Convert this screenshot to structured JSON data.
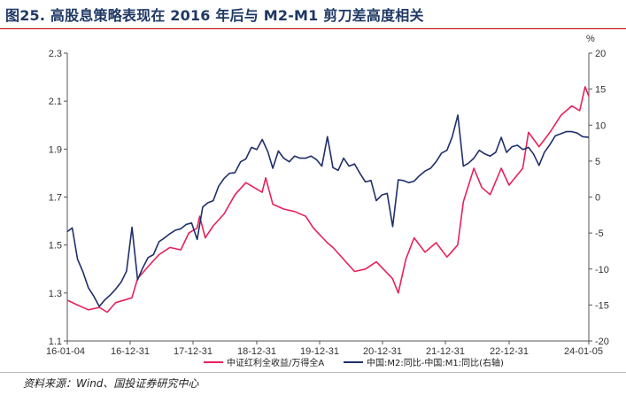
{
  "title": "图25. 高股息策略表现在 2016 年后与 M2-M1 剪刀差高度相关",
  "source": "资料来源：Wind、国投证券研究中心",
  "chart_data": {
    "type": "line",
    "x_tick_labels": [
      "16-01-04",
      "16-12-31",
      "17-12-31",
      "18-12-31",
      "19-12-31",
      "20-12-31",
      "21-12-31",
      "22-12-31",
      "24-01-05"
    ],
    "x_range": [
      "2016-01-04",
      "2024-01-05"
    ],
    "y_left": {
      "ticks": [
        "1.1",
        "1.3",
        "1.5",
        "1.7",
        "1.9",
        "2.1",
        "2.3"
      ],
      "range": [
        1.1,
        2.3
      ]
    },
    "y_right": {
      "unit": "%",
      "ticks": [
        "-20",
        "-15",
        "-10",
        "-5",
        "0",
        "5",
        "10",
        "15",
        "20"
      ],
      "range": [
        -20,
        20
      ]
    },
    "grid": false,
    "legend_position": "bottom",
    "series": [
      {
        "name": "中证红利全收益/万得全A",
        "axis": "left",
        "color": "#e8215a",
        "points": [
          [
            "2016-01-04",
            1.27
          ],
          [
            "2016-03-01",
            1.25
          ],
          [
            "2016-05-01",
            1.23
          ],
          [
            "2016-07-01",
            1.24
          ],
          [
            "2016-08-15",
            1.22
          ],
          [
            "2016-10-01",
            1.26
          ],
          [
            "2016-12-31",
            1.28
          ],
          [
            "2017-02-01",
            1.36
          ],
          [
            "2017-04-01",
            1.41
          ],
          [
            "2017-06-01",
            1.46
          ],
          [
            "2017-08-01",
            1.49
          ],
          [
            "2017-10-01",
            1.48
          ],
          [
            "2017-11-15",
            1.55
          ],
          [
            "2017-12-31",
            1.57
          ],
          [
            "2018-01-15",
            1.62
          ],
          [
            "2018-02-15",
            1.53
          ],
          [
            "2018-04-01",
            1.58
          ],
          [
            "2018-06-01",
            1.63
          ],
          [
            "2018-08-01",
            1.71
          ],
          [
            "2018-10-01",
            1.76
          ],
          [
            "2018-12-31",
            1.72
          ],
          [
            "2019-01-20",
            1.78
          ],
          [
            "2019-03-01",
            1.67
          ],
          [
            "2019-05-01",
            1.65
          ],
          [
            "2019-07-01",
            1.64
          ],
          [
            "2019-09-01",
            1.62
          ],
          [
            "2019-10-15",
            1.57
          ],
          [
            "2019-12-31",
            1.51
          ],
          [
            "2020-02-01",
            1.49
          ],
          [
            "2020-04-01",
            1.44
          ],
          [
            "2020-06-01",
            1.39
          ],
          [
            "2020-08-01",
            1.4
          ],
          [
            "2020-10-01",
            1.43
          ],
          [
            "2020-12-31",
            1.36
          ],
          [
            "2021-02-01",
            1.3
          ],
          [
            "2021-03-15",
            1.44
          ],
          [
            "2021-05-01",
            1.53
          ],
          [
            "2021-07-01",
            1.47
          ],
          [
            "2021-09-01",
            1.51
          ],
          [
            "2021-11-01",
            1.45
          ],
          [
            "2021-12-31",
            1.5
          ],
          [
            "2022-02-01",
            1.68
          ],
          [
            "2022-04-01",
            1.82
          ],
          [
            "2022-05-15",
            1.74
          ],
          [
            "2022-07-01",
            1.71
          ],
          [
            "2022-09-01",
            1.82
          ],
          [
            "2022-10-15",
            1.75
          ],
          [
            "2022-12-31",
            1.82
          ],
          [
            "2023-02-01",
            1.97
          ],
          [
            "2023-04-01",
            1.91
          ],
          [
            "2023-06-01",
            1.97
          ],
          [
            "2023-08-01",
            2.04
          ],
          [
            "2023-10-01",
            2.08
          ],
          [
            "2023-11-15",
            2.06
          ],
          [
            "2023-12-15",
            2.16
          ],
          [
            "2024-01-05",
            2.12
          ]
        ]
      },
      {
        "name": "中国:M2:同比-中国:M1:同比(右轴)",
        "axis": "right",
        "color": "#1f2f6b",
        "points": [
          [
            "2016-01-04",
            -4.8
          ],
          [
            "2016-02-01",
            -4.3
          ],
          [
            "2016-03-01",
            -8.6
          ],
          [
            "2016-04-01",
            -10.4
          ],
          [
            "2016-05-01",
            -12.6
          ],
          [
            "2016-06-01",
            -13.8
          ],
          [
            "2016-07-01",
            -15.2
          ],
          [
            "2016-08-01",
            -14.3
          ],
          [
            "2016-09-01",
            -13.6
          ],
          [
            "2016-10-01",
            -12.8
          ],
          [
            "2016-11-01",
            -11.8
          ],
          [
            "2016-12-01",
            -10.3
          ],
          [
            "2017-01-01",
            -4.2
          ],
          [
            "2017-02-01",
            -11.5
          ],
          [
            "2017-03-01",
            -9.9
          ],
          [
            "2017-04-01",
            -8.4
          ],
          [
            "2017-05-01",
            -8.0
          ],
          [
            "2017-06-01",
            -6.2
          ],
          [
            "2017-07-01",
            -5.7
          ],
          [
            "2017-08-01",
            -5.1
          ],
          [
            "2017-09-01",
            -4.6
          ],
          [
            "2017-10-01",
            -4.4
          ],
          [
            "2017-11-01",
            -3.8
          ],
          [
            "2017-12-01",
            -3.6
          ],
          [
            "2018-01-01",
            -5.9
          ],
          [
            "2018-02-01",
            -1.4
          ],
          [
            "2018-03-01",
            -0.8
          ],
          [
            "2018-04-01",
            -0.5
          ],
          [
            "2018-05-01",
            1.5
          ],
          [
            "2018-06-01",
            2.6
          ],
          [
            "2018-07-01",
            3.3
          ],
          [
            "2018-08-01",
            3.4
          ],
          [
            "2018-09-01",
            4.9
          ],
          [
            "2018-10-01",
            5.3
          ],
          [
            "2018-11-01",
            6.9
          ],
          [
            "2018-12-01",
            6.6
          ],
          [
            "2019-01-01",
            8.0
          ],
          [
            "2019-02-01",
            6.3
          ],
          [
            "2019-03-01",
            4.0
          ],
          [
            "2019-04-01",
            6.4
          ],
          [
            "2019-05-01",
            5.4
          ],
          [
            "2019-06-01",
            4.9
          ],
          [
            "2019-07-01",
            5.7
          ],
          [
            "2019-08-01",
            5.4
          ],
          [
            "2019-09-01",
            5.4
          ],
          [
            "2019-10-01",
            5.7
          ],
          [
            "2019-11-01",
            5.2
          ],
          [
            "2019-12-01",
            4.3
          ],
          [
            "2020-01-01",
            8.4
          ],
          [
            "2020-02-01",
            4.1
          ],
          [
            "2020-03-01",
            3.7
          ],
          [
            "2020-04-01",
            5.4
          ],
          [
            "2020-05-01",
            4.3
          ],
          [
            "2020-06-01",
            4.6
          ],
          [
            "2020-07-01",
            3.3
          ],
          [
            "2020-08-01",
            2.1
          ],
          [
            "2020-09-01",
            2.3
          ],
          [
            "2020-10-01",
            -0.5
          ],
          [
            "2020-11-01",
            0.3
          ],
          [
            "2020-12-01",
            0.5
          ],
          [
            "2021-01-01",
            -4.1
          ],
          [
            "2021-02-01",
            2.4
          ],
          [
            "2021-03-01",
            2.3
          ],
          [
            "2021-04-01",
            2.0
          ],
          [
            "2021-05-01",
            2.2
          ],
          [
            "2021-06-01",
            3.0
          ],
          [
            "2021-07-01",
            3.6
          ],
          [
            "2021-08-01",
            4.0
          ],
          [
            "2021-09-01",
            4.9
          ],
          [
            "2021-10-01",
            6.1
          ],
          [
            "2021-11-01",
            6.5
          ],
          [
            "2021-12-01",
            8.4
          ],
          [
            "2022-01-01",
            11.4
          ],
          [
            "2022-02-01",
            4.3
          ],
          [
            "2022-03-01",
            4.7
          ],
          [
            "2022-04-01",
            5.4
          ],
          [
            "2022-05-01",
            6.5
          ],
          [
            "2022-06-01",
            6.0
          ],
          [
            "2022-07-01",
            5.7
          ],
          [
            "2022-08-01",
            6.2
          ],
          [
            "2022-09-01",
            8.3
          ],
          [
            "2022-10-01",
            6.2
          ],
          [
            "2022-11-01",
            7.0
          ],
          [
            "2022-12-01",
            7.2
          ],
          [
            "2023-01-01",
            6.6
          ],
          [
            "2023-02-01",
            6.9
          ],
          [
            "2023-03-01",
            6.0
          ],
          [
            "2023-04-01",
            4.4
          ],
          [
            "2023-05-01",
            6.2
          ],
          [
            "2023-06-01",
            7.3
          ],
          [
            "2023-07-01",
            8.5
          ],
          [
            "2023-08-01",
            8.8
          ],
          [
            "2023-09-01",
            9.1
          ],
          [
            "2023-10-01",
            9.1
          ],
          [
            "2023-11-01",
            8.9
          ],
          [
            "2023-12-01",
            8.4
          ],
          [
            "2024-01-05",
            8.3
          ]
        ]
      }
    ]
  }
}
